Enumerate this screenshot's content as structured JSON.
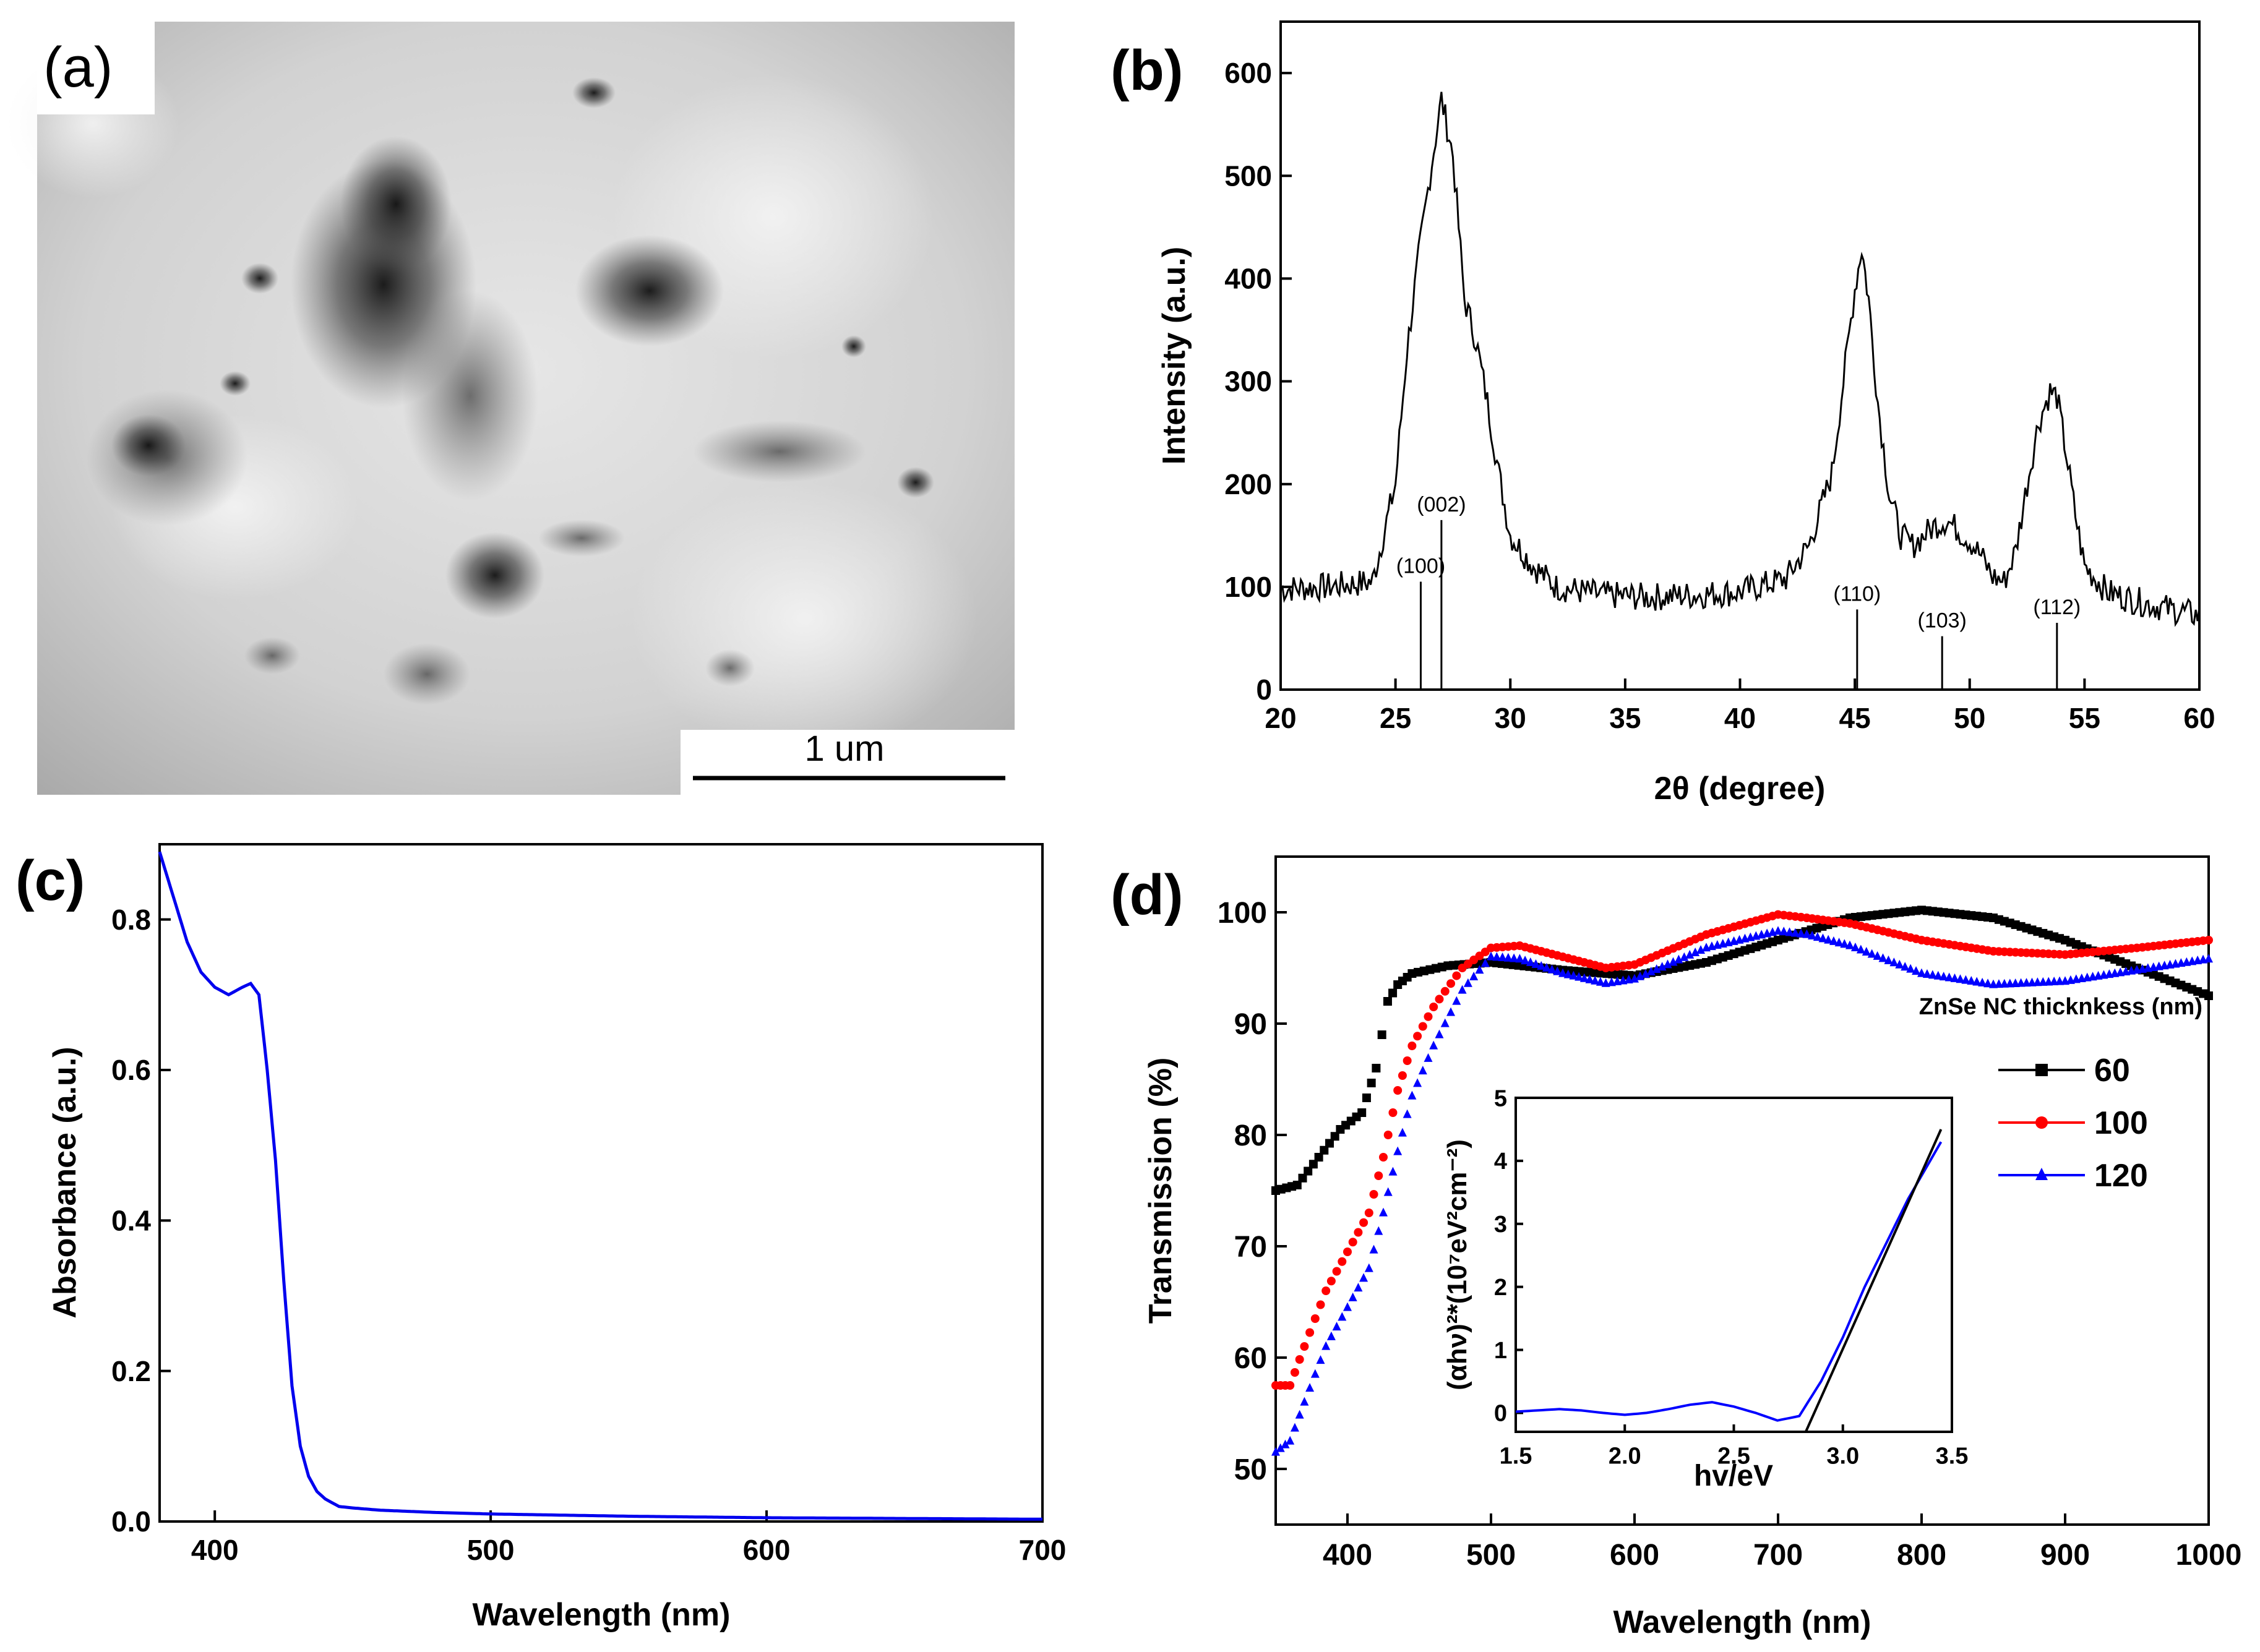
{
  "figure": {
    "panels": [
      {
        "label": "(a)"
      },
      {
        "label": "(b)"
      },
      {
        "label": "(c)"
      },
      {
        "label": "(d)"
      }
    ]
  },
  "micrograph": {
    "scale_bar_label": "1 um"
  },
  "chart_data": [
    {
      "id": "b",
      "type": "line",
      "panel": "(b)",
      "xlabel": "2θ (degree)",
      "ylabel": "Intensity (a.u.)",
      "xlim": [
        20,
        60
      ],
      "ylim": [
        0,
        650
      ],
      "xticks": [
        20,
        25,
        30,
        35,
        40,
        45,
        50,
        55,
        60
      ],
      "yticks": [
        0,
        100,
        200,
        300,
        400,
        500,
        600
      ],
      "series": [
        {
          "name": "XRD pattern",
          "color": "#000000",
          "x": [
            20,
            22,
            24,
            25,
            25.5,
            26,
            26.5,
            27,
            27.5,
            28,
            28.5,
            29,
            29.5,
            30,
            31,
            32,
            34,
            36,
            38,
            40,
            42,
            43,
            44,
            44.5,
            45,
            45.3,
            45.6,
            46,
            46.5,
            47,
            47.5,
            48,
            48.5,
            49,
            49.5,
            50,
            50.5,
            51,
            51.5,
            52,
            52.5,
            53,
            53.5,
            53.8,
            54.2,
            54.6,
            55,
            56,
            57,
            58,
            60
          ],
          "y": [
            98,
            100,
            105,
            200,
            330,
            420,
            500,
            575,
            520,
            380,
            340,
            280,
            210,
            150,
            120,
            100,
            92,
            90,
            92,
            95,
            108,
            140,
            210,
            300,
            390,
            430,
            380,
            280,
            190,
            150,
            140,
            150,
            160,
            165,
            155,
            145,
            130,
            110,
            105,
            135,
            200,
            260,
            290,
            285,
            230,
            170,
            120,
            95,
            88,
            82,
            72
          ]
        }
      ],
      "reference_lines": [
        {
          "label": "(100)",
          "x": 26.1,
          "height": 105
        },
        {
          "label": "(002)",
          "x": 27.0,
          "height": 165
        },
        {
          "label": "(110)",
          "x": 45.1,
          "height": 78
        },
        {
          "label": "(103)",
          "x": 48.8,
          "height": 52
        },
        {
          "label": "(112)",
          "x": 53.8,
          "height": 65
        }
      ]
    },
    {
      "id": "c",
      "type": "line",
      "panel": "(c)",
      "xlabel": "Wavelength (nm)",
      "ylabel": "Absorbance (a.u.)",
      "xlim": [
        380,
        700
      ],
      "ylim": [
        0,
        0.9
      ],
      "xticks": [
        400,
        500,
        600,
        700
      ],
      "yticks": [
        0.0,
        0.2,
        0.4,
        0.6,
        0.8
      ],
      "ytick_labels": [
        "0.0",
        "0.2",
        "0.4",
        "0.6",
        "0.8"
      ],
      "series": [
        {
          "name": "Absorbance",
          "color": "#0000ee",
          "x": [
            380,
            385,
            390,
            395,
            400,
            405,
            410,
            413,
            416,
            419,
            422,
            425,
            428,
            431,
            434,
            437,
            440,
            445,
            450,
            460,
            480,
            500,
            550,
            600,
            650,
            700
          ],
          "y": [
            0.89,
            0.83,
            0.77,
            0.73,
            0.71,
            0.7,
            0.71,
            0.715,
            0.7,
            0.6,
            0.48,
            0.32,
            0.18,
            0.1,
            0.06,
            0.04,
            0.03,
            0.02,
            0.018,
            0.015,
            0.012,
            0.01,
            0.007,
            0.005,
            0.004,
            0.003
          ]
        }
      ]
    },
    {
      "id": "d",
      "type": "line",
      "panel": "(d)",
      "xlabel": "Wavelength (nm)",
      "ylabel": "Transmission (%)",
      "xlim": [
        350,
        1000
      ],
      "ylim": [
        45,
        105
      ],
      "xticks": [
        400,
        500,
        600,
        700,
        800,
        900,
        1000
      ],
      "yticks": [
        50,
        60,
        70,
        80,
        90,
        100
      ],
      "legend_title": "ZnSe NC thicknkess (nm)",
      "legend_position": "right",
      "series": [
        {
          "name": "60",
          "color": "#000000",
          "marker": "square",
          "x": [
            350,
            365,
            380,
            395,
            410,
            420,
            428,
            435,
            445,
            470,
            500,
            550,
            600,
            650,
            700,
            750,
            800,
            850,
            900,
            950,
            1000
          ],
          "y": [
            75,
            75.5,
            78,
            80.5,
            82,
            86,
            92,
            93.5,
            94.5,
            95.2,
            95.5,
            94.8,
            94.3,
            95.5,
            97.5,
            99.5,
            100.2,
            99.5,
            97.5,
            95.0,
            92.5
          ]
        },
        {
          "name": "100",
          "color": "#ff0000",
          "marker": "circle",
          "x": [
            350,
            360,
            370,
            385,
            400,
            415,
            425,
            435,
            445,
            460,
            480,
            500,
            520,
            550,
            580,
            600,
            650,
            700,
            720,
            750,
            800,
            850,
            900,
            950,
            1000
          ],
          "y": [
            57.5,
            57.5,
            61,
            66,
            69.5,
            73,
            78,
            84,
            88,
            91.5,
            95,
            96.8,
            97,
            96,
            95,
            95.3,
            98,
            99.8,
            99.5,
            99,
            97.5,
            96.5,
            96.2,
            96.8,
            97.5
          ]
        },
        {
          "name": "120",
          "color": "#0000ff",
          "marker": "triangle",
          "x": [
            350,
            360,
            370,
            385,
            400,
            415,
            425,
            435,
            445,
            460,
            480,
            500,
            520,
            550,
            580,
            600,
            650,
            700,
            720,
            750,
            800,
            850,
            900,
            950,
            1000
          ],
          "y": [
            51.5,
            52.5,
            56,
            61,
            64.5,
            68,
            73,
            78.5,
            83.5,
            88,
            93,
            96,
            95.8,
            94.5,
            93.6,
            94,
            96.8,
            98.3,
            98,
            97,
            94.5,
            93.5,
            93.8,
            94.8,
            95.8
          ]
        }
      ],
      "inset": {
        "xlabel": "hv/eV",
        "ylabel": "(αhν)²*(10⁷eV²cm⁻²)",
        "xlim": [
          1.5,
          3.5
        ],
        "ylim": [
          -0.3,
          5
        ],
        "xticks": [
          1.5,
          2.0,
          2.5,
          3.0,
          3.5
        ],
        "xtick_labels": [
          "1.5",
          "2.0",
          "2.5",
          "3.0",
          "3.5"
        ],
        "yticks": [
          0,
          1,
          2,
          3,
          4,
          5
        ],
        "series": [
          {
            "name": "Tauc plot",
            "color": "#0000ff",
            "x": [
              1.5,
              1.6,
              1.7,
              1.8,
              1.9,
              2.0,
              2.1,
              2.2,
              2.3,
              2.4,
              2.5,
              2.6,
              2.7,
              2.8,
              2.9,
              3.0,
              3.1,
              3.2,
              3.3,
              3.4,
              3.45
            ],
            "y": [
              0.02,
              0.04,
              0.06,
              0.04,
              0.0,
              -0.03,
              0.0,
              0.06,
              0.13,
              0.17,
              0.1,
              0.0,
              -0.12,
              -0.05,
              0.5,
              1.2,
              2.0,
              2.7,
              3.4,
              4.0,
              4.3
            ]
          },
          {
            "name": "Linear fit",
            "color": "#000000",
            "x": [
              2.83,
              3.45
            ],
            "y": [
              -0.3,
              4.5
            ]
          }
        ]
      }
    }
  ],
  "colors": {
    "micrograph_bg": "#cfcfcf",
    "micrograph_dark": "#202020",
    "axis": "#000000"
  }
}
